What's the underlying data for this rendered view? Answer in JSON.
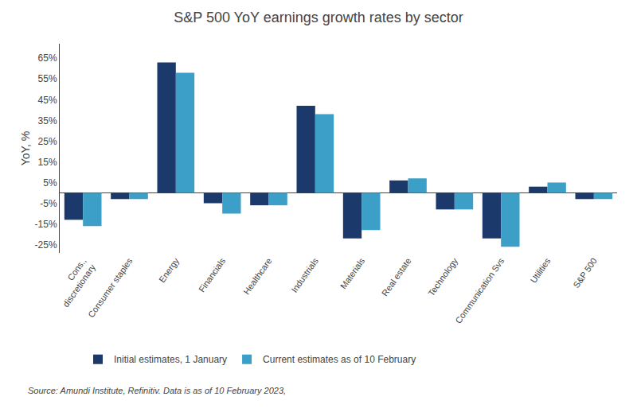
{
  "chart_data": {
    "type": "bar",
    "title": "S&P 500 YoY earnings growth rates by sector",
    "ylabel": "YoY, %",
    "categories": [
      "Cons.,\ndiscretionary",
      "Consumer staples",
      "Energy",
      "Financials",
      "Healthcare",
      "Industrials",
      "Materials",
      "Real estate",
      "Technology",
      "Communication Svs",
      "Utilities",
      "S&P 500"
    ],
    "series": [
      {
        "name": "Initial estimates, 1 January",
        "color": "#1b3a6b",
        "values": [
          -13,
          -3,
          63,
          -5,
          -6,
          42,
          -22,
          6,
          -8,
          -22,
          3,
          -3
        ]
      },
      {
        "name": "Current estimates as of 10 February",
        "color": "#3b9fc8",
        "values": [
          -16,
          -3,
          58,
          -10,
          -6,
          38,
          -18,
          7,
          -8,
          -26,
          5,
          -3
        ]
      }
    ],
    "ylim": [
      -29,
      72
    ],
    "yticks": [
      {
        "value": -25,
        "label": "-25%"
      },
      {
        "value": -15,
        "label": "-15%"
      },
      {
        "value": -5,
        "label": "-5%"
      },
      {
        "value": 5,
        "label": "5%"
      },
      {
        "value": 15,
        "label": "15%"
      },
      {
        "value": 25,
        "label": "25%"
      },
      {
        "value": 35,
        "label": "35%"
      },
      {
        "value": 45,
        "label": "45%"
      },
      {
        "value": 55,
        "label": "55%"
      },
      {
        "value": 65,
        "label": "65%"
      }
    ],
    "grid": false,
    "legend": "bottom",
    "annotations": [
      "Source: Amundi Institute, Refinitiv. Data is as of 10 February 2023,"
    ]
  }
}
